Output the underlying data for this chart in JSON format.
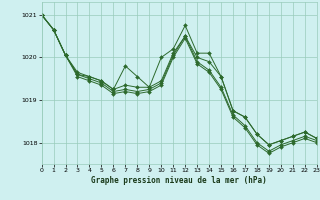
{
  "title": "Graphe pression niveau de la mer (hPa)",
  "bg_color": "#cff0f0",
  "grid_color": "#99ccbb",
  "line_color": "#2d6a2d",
  "marker_color": "#2d6a2d",
  "xlim": [
    0,
    23
  ],
  "ylim": [
    1017.5,
    1021.3
  ],
  "xticks": [
    0,
    1,
    2,
    3,
    4,
    5,
    6,
    7,
    8,
    9,
    10,
    11,
    12,
    13,
    14,
    15,
    16,
    17,
    18,
    19,
    20,
    21,
    22,
    23
  ],
  "yticks": [
    1018,
    1019,
    1020,
    1021
  ],
  "series": [
    [
      1021.0,
      1020.65,
      null,
      null,
      null,
      null,
      null,
      null,
      null,
      null,
      1020.0,
      1020.2,
      1020.75,
      1020.1,
      1020.1,
      null,
      null,
      null,
      null,
      null,
      null,
      null,
      null,
      null
    ],
    [
      null,
      null,
      1020.05,
      1019.65,
      1019.55,
      1019.45,
      null,
      1019.8,
      1019.55,
      null,
      null,
      null,
      null,
      null,
      null,
      null,
      null,
      null,
      null,
      null,
      null,
      null,
      null,
      null
    ],
    [
      null,
      null,
      null,
      1019.6,
      1019.55,
      1019.45,
      1019.25,
      1019.35,
      1019.3,
      1019.3,
      1019.45,
      1020.1,
      1020.5,
      1020.0,
      null,
      1019.55,
      1018.75,
      1018.6,
      1018.2,
      1017.95,
      1018.05,
      1018.15,
      1018.25,
      1018.1
    ],
    [
      null,
      null,
      null,
      1019.6,
      1019.5,
      1019.4,
      1019.2,
      1019.25,
      1019.2,
      1019.25,
      1019.4,
      1020.05,
      1020.5,
      1019.9,
      null,
      1019.3,
      1018.65,
      1018.4,
      1018.0,
      1017.8,
      1017.95,
      1018.05,
      1018.15,
      1018.05
    ],
    [
      null,
      null,
      null,
      1019.55,
      1019.45,
      1019.35,
      1019.15,
      1019.2,
      1019.15,
      1019.2,
      1019.35,
      1020.0,
      1020.45,
      1019.85,
      null,
      1019.25,
      1018.6,
      1018.35,
      1017.95,
      1017.75,
      1017.9,
      1018.0,
      1018.1,
      1018.0
    ],
    [
      null,
      null,
      null,
      1019.5,
      1019.4,
      1019.3,
      1019.1,
      1019.15,
      1019.1,
      1019.15,
      1019.3,
      1019.95,
      1020.4,
      1019.8,
      null,
      1019.2,
      1018.55,
      1018.3,
      1017.9,
      1017.7,
      1017.85,
      1017.95,
      1018.05,
      1017.95
    ]
  ],
  "series_full": [
    [
      1021.0,
      1020.65,
      1020.05,
      1019.65,
      1019.55,
      1019.45,
      1019.25,
      1019.8,
      1019.55,
      1019.3,
      1020.0,
      1020.2,
      1020.75,
      1020.1,
      1020.1,
      1019.55,
      1018.75,
      1018.6,
      1018.2,
      1017.95,
      1018.05,
      1018.15,
      1018.25,
      1018.1
    ],
    [
      1021.0,
      1020.65,
      1020.05,
      1019.6,
      1019.55,
      1019.45,
      1019.25,
      1019.35,
      1019.3,
      1019.3,
      1019.45,
      1020.1,
      1020.5,
      1020.0,
      1019.9,
      1019.55,
      1018.75,
      1018.6,
      1018.2,
      1017.95,
      1018.05,
      1018.15,
      1018.25,
      1018.1
    ],
    [
      1021.0,
      1020.65,
      1020.05,
      1019.6,
      1019.5,
      1019.4,
      1019.2,
      1019.25,
      1019.2,
      1019.25,
      1019.4,
      1020.05,
      1020.5,
      1019.9,
      1019.7,
      1019.3,
      1018.65,
      1018.4,
      1018.0,
      1017.8,
      1017.95,
      1018.05,
      1018.15,
      1018.05
    ],
    [
      1021.0,
      1020.65,
      1020.05,
      1019.55,
      1019.45,
      1019.35,
      1019.15,
      1019.2,
      1019.15,
      1019.2,
      1019.35,
      1020.0,
      1020.45,
      1019.85,
      1019.65,
      1019.25,
      1018.6,
      1018.35,
      1017.95,
      1017.75,
      1017.9,
      1018.0,
      1018.1,
      1018.0
    ]
  ]
}
